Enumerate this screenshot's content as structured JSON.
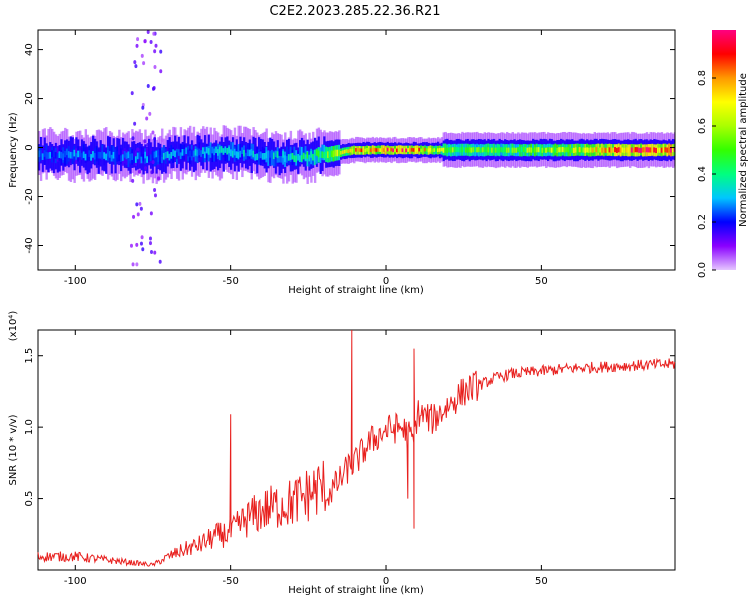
{
  "title": "C2E2.2023.285.22.36.R21",
  "chart_data": [
    {
      "type": "heatmap",
      "xlabel": "Height of straight line (km)",
      "ylabel": "Frequency (Hz)",
      "xlim": [
        -112,
        93
      ],
      "ylim": [
        -50,
        48
      ],
      "xticks": [
        -100,
        -50,
        0,
        50
      ],
      "yticks": [
        -40,
        -20,
        0,
        20,
        40
      ],
      "colorbar": {
        "label": "Normalized spectral amplitude",
        "range": [
          0,
          1
        ],
        "ticks": [
          0.0,
          0.2,
          0.4,
          0.6,
          0.8
        ],
        "colors": [
          "#e5c6ff",
          "#8a00ff",
          "#0000ff",
          "#00c6ff",
          "#00ff7f",
          "#33ff00",
          "#aaff00",
          "#ffff00",
          "#ff9900",
          "#ff0000",
          "#ff0080"
        ]
      },
      "ridge": {
        "x": [
          -112,
          -100,
          -90,
          -80,
          -70,
          -60,
          -50,
          -40,
          -30,
          -20,
          -10,
          0,
          10,
          20,
          30,
          40,
          50,
          60,
          70,
          80,
          93
        ],
        "freq": [
          -3,
          -3,
          -3,
          -4,
          -3,
          -2,
          -2,
          -3,
          -4,
          -3,
          -1,
          -1,
          -1,
          -1,
          -1,
          -1,
          -1,
          -1,
          -1,
          -1,
          -1
        ],
        "amplitude": [
          0.25,
          0.25,
          0.25,
          0.25,
          0.28,
          0.28,
          0.3,
          0.3,
          0.35,
          0.45,
          0.75,
          0.85,
          0.8,
          0.5,
          0.5,
          0.5,
          0.55,
          0.6,
          0.75,
          0.85,
          0.9
        ]
      }
    },
    {
      "type": "line",
      "xlabel": "Height of straight line (km)",
      "ylabel": "SNR (10 * v/v)",
      "scale_label": "(x10⁴)",
      "xlim": [
        -112,
        93
      ],
      "ylim": [
        0,
        1.68
      ],
      "xticks": [
        -100,
        -50,
        0,
        50
      ],
      "yticks": [
        0.5,
        1.0,
        1.5
      ],
      "ytick_labels": [
        "0.5",
        "1.0",
        "1.5"
      ],
      "series": [
        {
          "color": "#e8201e",
          "x": [
            -112,
            -100,
            -90,
            -80,
            -75,
            -70,
            -65,
            -60,
            -55,
            -50,
            -45,
            -40,
            -35,
            -30,
            -25,
            -20,
            -15,
            -12,
            -10,
            -5,
            0,
            5,
            9,
            10,
            15,
            20,
            25,
            30,
            35,
            40,
            50,
            60,
            70,
            80,
            93
          ],
          "values": [
            0.08,
            0.08,
            0.06,
            0.04,
            0.03,
            0.08,
            0.12,
            0.15,
            0.2,
            0.22,
            0.3,
            0.35,
            0.38,
            0.4,
            0.45,
            0.5,
            0.62,
            0.72,
            0.75,
            0.9,
            0.98,
            1.0,
            0.9,
            1.1,
            1.05,
            1.15,
            1.25,
            1.3,
            1.35,
            1.38,
            1.4,
            1.42,
            1.43,
            1.44,
            1.45
          ]
        }
      ],
      "spikes": [
        {
          "x": -50,
          "y": 1.09
        },
        {
          "x": -11,
          "y": 1.68
        },
        {
          "x": 9,
          "y": 1.55
        },
        {
          "x": 9,
          "y": 0.29
        },
        {
          "x": 7,
          "y": 0.5
        }
      ]
    }
  ]
}
